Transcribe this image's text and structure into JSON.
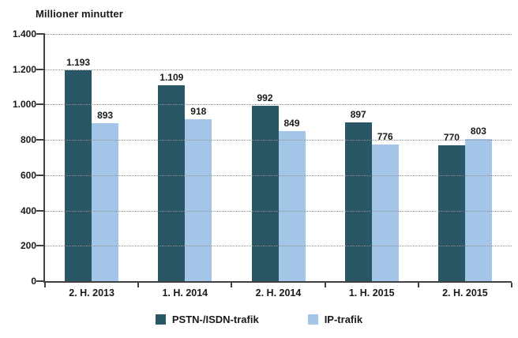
{
  "chart_data": {
    "type": "bar",
    "title": "Millioner minutter",
    "categories": [
      "2. H. 2013",
      "1. H. 2014",
      "2. H. 2014",
      "1. H. 2015",
      "2. H. 2015"
    ],
    "series": [
      {
        "id": "pstn-isdn-trafik",
        "name": "PSTN-/ISDN-trafik",
        "color": "#2A5766",
        "values": [
          1193,
          1109,
          992,
          897,
          770
        ],
        "labels": [
          "1.193",
          "1.109",
          "992",
          "897",
          "770"
        ]
      },
      {
        "id": "ip-trafik",
        "name": "IP-trafik",
        "color": "#A3C6E8",
        "values": [
          893,
          918,
          849,
          776,
          803
        ],
        "labels": [
          "893",
          "918",
          "849",
          "776",
          "803"
        ]
      }
    ],
    "xlabel": "",
    "ylabel": "Millioner minutter",
    "ylim": [
      0,
      1400
    ],
    "ytick_step": 200,
    "ytick_values": [
      1400,
      1200,
      1000,
      800,
      600,
      400,
      200,
      0
    ],
    "ytick_labels": [
      "1.400",
      "1.200",
      "1.000",
      "800",
      "600",
      "400",
      "200",
      "0"
    ],
    "grid": "horizontal-dotted",
    "legend_position": "bottom",
    "colors": {
      "axis": "#404040",
      "gridline": "#8f8f8f",
      "text": "#1a1a1a",
      "background": "#ffffff"
    }
  }
}
